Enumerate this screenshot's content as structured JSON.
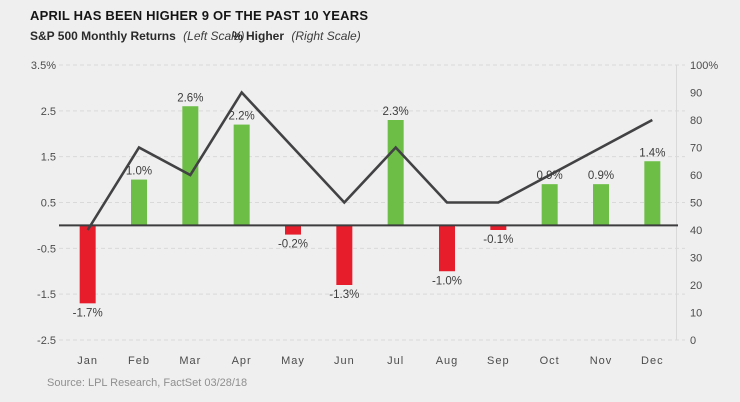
{
  "header": {
    "title": "APRIL HAS BEEN HIGHER 9 OF THE PAST 10 YEARS",
    "legend_left_label": "S&P 500 Monthly Returns",
    "legend_left_scale": "(Left Scale)",
    "legend_right_label": "% Higher",
    "legend_right_scale": "(Right Scale)"
  },
  "footer": {
    "source": "Source: LPL Research, FactSet 03/28/18"
  },
  "chart_data": {
    "type": "bar+line combo",
    "title": "APRIL HAS BEEN HIGHER 9 OF THE PAST 10 YEARS",
    "categories": [
      "Jan",
      "Feb",
      "Mar",
      "Apr",
      "May",
      "Jun",
      "Jul",
      "Aug",
      "Sep",
      "Oct",
      "Nov",
      "Dec"
    ],
    "series": [
      {
        "name": "S&P 500 Monthly Returns",
        "type": "bar",
        "axis": "left",
        "values": [
          -1.7,
          1.0,
          2.6,
          2.2,
          -0.2,
          -1.3,
          2.3,
          -1.0,
          -0.1,
          0.9,
          0.9,
          1.4
        ],
        "labels": [
          "-1.7%",
          "1.0%",
          "2.6%",
          "2.2%",
          "-0.2%",
          "-1.3%",
          "2.3%",
          "-1.0%",
          "-0.1%",
          "0.9%",
          "0.9%",
          "1.4%"
        ]
      },
      {
        "name": "% Higher",
        "type": "line",
        "axis": "right",
        "values": [
          40,
          70,
          60,
          90,
          70,
          50,
          70,
          50,
          50,
          60,
          70,
          80
        ]
      }
    ],
    "left_axis": {
      "label": "S&P 500 Monthly Returns (Left Scale)",
      "range": [
        -2.5,
        3.5
      ],
      "tick_values": [
        3.5,
        2.5,
        1.5,
        0.5,
        -0.5,
        -1.5,
        -2.5
      ],
      "tick_labels": [
        "3.5%",
        "2.5",
        "1.5",
        "0.5",
        "-0.5",
        "-1.5",
        "-2.5"
      ]
    },
    "right_axis": {
      "label": "% Higher (Right Scale)",
      "range": [
        0,
        100
      ],
      "tick_values": [
        100,
        90,
        80,
        70,
        60,
        50,
        40,
        30,
        20,
        10,
        0
      ],
      "tick_labels": [
        "100%",
        "90",
        "80",
        "70",
        "60",
        "50",
        "40",
        "30",
        "20",
        "10",
        "0"
      ]
    },
    "grid": "dashed horizontal lines at left-axis ticks",
    "legend_position": "top-left, text only",
    "colors": {
      "bar_positive": "#6cbe46",
      "bar_negative": "#e81d2c",
      "line": "#424244",
      "zero_axis": "#3d3d3f",
      "gridline": "#d9d9d9",
      "background": "#efefef"
    }
  }
}
